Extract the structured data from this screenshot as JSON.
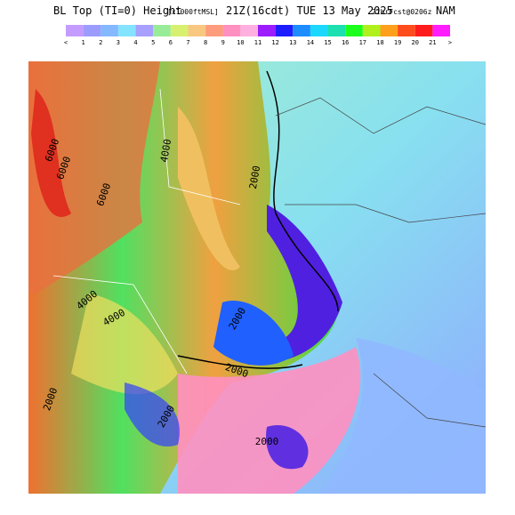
{
  "header": {
    "title": "BL Top (TI=0) Height",
    "units": "[x1000ftMSL]",
    "time": "21Z(16cdt) TUE 13 May 2025",
    "forecast": "21hrFcst@0206z",
    "model": "NAM"
  },
  "colorbar": {
    "labels": [
      "<",
      "1",
      "2",
      "3",
      "4",
      "5",
      "6",
      "7",
      "8",
      "9",
      "10",
      "11",
      "12",
      "13",
      "14",
      "15",
      "16",
      "17",
      "18",
      "19",
      "20",
      "21",
      ">"
    ],
    "colors": [
      "#c49cff",
      "#9c9cff",
      "#84b8ff",
      "#84e4ff",
      "#a8a0ff",
      "#98ec98",
      "#d8f070",
      "#f8c880",
      "#ff9c7c",
      "#ff90c0",
      "#ffb0e0",
      "#9c1cff",
      "#1c1cff",
      "#1c8cff",
      "#1cd8ff",
      "#1ce0b0",
      "#1cff1c",
      "#b0f01c",
      "#ffa01c",
      "#ff4c1c",
      "#ff1c1c",
      "#ff1cff"
    ]
  },
  "contour_labels": [
    "6000",
    "6000",
    "6000",
    "4000",
    "2000",
    "4000",
    "2000",
    "2000",
    "4000",
    "2000",
    "2000",
    "2000"
  ]
}
